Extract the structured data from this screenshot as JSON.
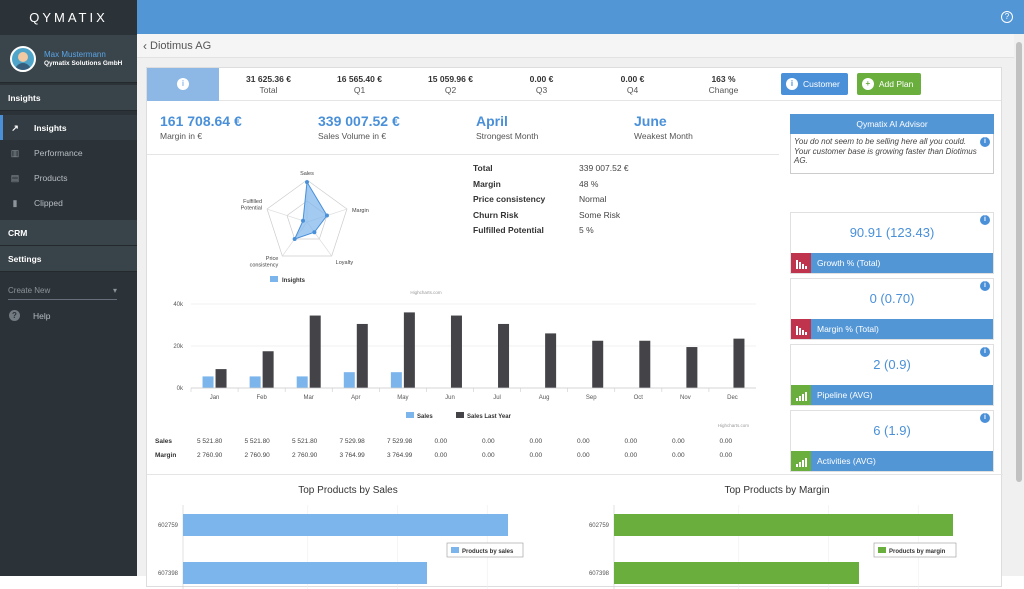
{
  "app": {
    "logo": "QYMATIX"
  },
  "user": {
    "name": "Max Mustermann",
    "company": "Qymatix Solutions GmbH"
  },
  "nav": {
    "section_insights": "Insights",
    "items": [
      {
        "label": "Insights",
        "icon": "trend-icon"
      },
      {
        "label": "Performance",
        "icon": "bar-chart-icon"
      },
      {
        "label": "Products",
        "icon": "list-icon"
      },
      {
        "label": "Clipped",
        "icon": "bookmark-icon"
      }
    ],
    "section_crm": "CRM",
    "section_settings": "Settings",
    "create_new": "Create New",
    "help": "Help"
  },
  "breadcrumb": {
    "title": "Diotimus AG"
  },
  "kpis": [
    {
      "value": "31 625.36 €",
      "label": "Total"
    },
    {
      "value": "16 565.40 €",
      "label": "Q1"
    },
    {
      "value": "15 059.96 €",
      "label": "Q2"
    },
    {
      "value": "0.00 €",
      "label": "Q3"
    },
    {
      "value": "0.00 €",
      "label": "Q4"
    },
    {
      "value": "163 %",
      "label": "Change"
    }
  ],
  "buttons": {
    "customer": "Customer",
    "add_plan": "Add Plan"
  },
  "summary": [
    {
      "value": "161 708.64 €",
      "label": "Margin in €"
    },
    {
      "value": "339 007.52 €",
      "label": "Sales Volume in €"
    },
    {
      "value": "April",
      "label": "Strongest Month"
    },
    {
      "value": "June",
      "label": "Weakest Month"
    }
  ],
  "radar": {
    "labels": [
      "Sales",
      "Margin",
      "Loyalty",
      "Price consistency",
      "Fulfilled Potential"
    ],
    "values": [
      0.95,
      0.5,
      0.3,
      0.5,
      0.1
    ],
    "legend": "Insights",
    "credit": "Highcharts.com"
  },
  "totals": [
    {
      "k": "Total",
      "v": "339 007.52 €"
    },
    {
      "k": "Margin",
      "v": "48 %"
    },
    {
      "k": "Price consistency",
      "v": "Normal"
    },
    {
      "k": "Churn Risk",
      "v": "Some Risk"
    },
    {
      "k": "Fulfilled Potential",
      "v": "5 %"
    }
  ],
  "chart_data": {
    "type": "bar",
    "categories": [
      "Jan",
      "Feb",
      "Mar",
      "Apr",
      "May",
      "Jun",
      "Jul",
      "Aug",
      "Sep",
      "Oct",
      "Nov",
      "Dec"
    ],
    "series": [
      {
        "name": "Sales",
        "values": [
          5521.8,
          5521.8,
          5521.8,
          7529.98,
          7529.98,
          0,
          0,
          0,
          0,
          0,
          0,
          0
        ],
        "color": "#7cb5ec"
      },
      {
        "name": "Sales Last Year",
        "values": [
          9000,
          17500,
          34500,
          30500,
          36000,
          34500,
          30500,
          26000,
          22500,
          22500,
          19500,
          23500
        ],
        "color": "#434348"
      }
    ],
    "ylim": [
      0,
      40000
    ],
    "yticks": [
      "0k",
      "20k",
      "40k"
    ],
    "credit": "Highcharts.com"
  },
  "datatable": {
    "rows": [
      {
        "label": "Sales",
        "values": [
          "5 521.80",
          "5 521.80",
          "5 521.80",
          "7 529.98",
          "7 529.98",
          "0.00",
          "0.00",
          "0.00",
          "0.00",
          "0.00",
          "0.00",
          "0.00"
        ]
      },
      {
        "label": "Margin",
        "values": [
          "2 760.90",
          "2 760.90",
          "2 760.90",
          "3 764.99",
          "3 764.99",
          "0.00",
          "0.00",
          "0.00",
          "0.00",
          "0.00",
          "0.00",
          "0.00"
        ]
      }
    ]
  },
  "advisor": {
    "title": "Qymatix AI Advisor",
    "text": "You do not seem to be selling here all you could. Your customer base is growing faster than Diotimus AG."
  },
  "metrics": [
    {
      "value": "90.91 (123.43)",
      "label": "Growth % (Total)",
      "color": "red"
    },
    {
      "value": "0 (0.70)",
      "label": "Margin % (Total)",
      "color": "red"
    },
    {
      "value": "2 (0.9)",
      "label": "Pipeline (AVG)",
      "color": "green"
    },
    {
      "value": "6 (1.9)",
      "label": "Activities (AVG)",
      "color": "green"
    }
  ],
  "bottom": {
    "left_title": "Top Products by Sales",
    "right_title": "Top Products by Margin",
    "left_legend": "Products by sales",
    "right_legend": "Products by margin",
    "products": [
      "602759",
      "607398"
    ]
  },
  "colors": {
    "accent": "#5396d6",
    "sales": "#7cb5ec",
    "last_year": "#434348",
    "green": "#6aaf3d",
    "red": "#c0334d"
  }
}
